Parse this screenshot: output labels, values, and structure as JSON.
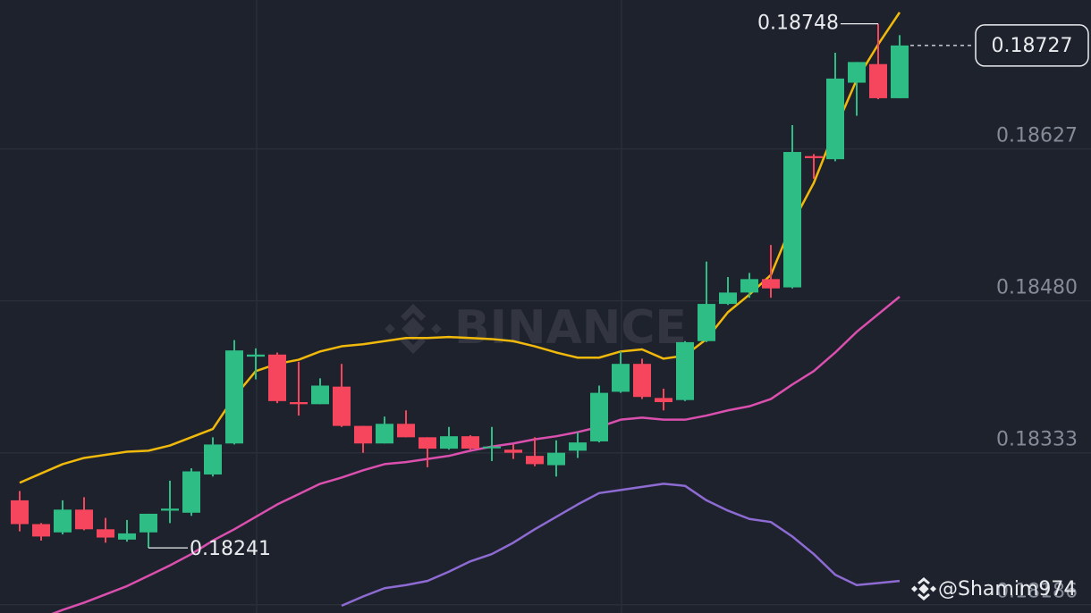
{
  "chart_data": {
    "type": "candlestick",
    "ylim": [
      0.18178,
      0.18771
    ],
    "yticks": [
      0.18186,
      0.18333,
      {
        "value": 0.1848,
        "label": "0.18480"
      },
      0.18627
    ],
    "grid": true,
    "up_color": "#2ebd85",
    "down_color": "#f6465d",
    "open": [
      0.18287,
      0.18264,
      0.18256,
      0.18278,
      0.18259,
      0.18249,
      0.18256,
      0.18277,
      0.18275,
      0.18312,
      0.18342,
      0.18426,
      0.18428,
      0.18382,
      0.1838,
      0.18397,
      0.18359,
      0.18342,
      0.18361,
      0.18348,
      0.18337,
      0.18349,
      0.18338,
      0.18336,
      0.1833,
      0.18321,
      0.18335,
      0.18344,
      0.18392,
      0.18419,
      0.18386,
      0.18384,
      0.18441,
      0.18477,
      0.18488,
      0.18501,
      0.18493,
      0.1862,
      0.18617,
      0.18691,
      0.18709,
      0.18676
    ],
    "high": [
      0.18296,
      0.18265,
      0.18287,
      0.1829,
      0.1827,
      0.18268,
      0.18274,
      0.18306,
      0.18318,
      0.18348,
      0.18442,
      0.18434,
      0.1843,
      0.18421,
      0.18405,
      0.18419,
      0.18359,
      0.18368,
      0.18374,
      0.18348,
      0.18358,
      0.1835,
      0.18358,
      0.18341,
      0.18348,
      0.18345,
      0.18353,
      0.18398,
      0.18431,
      0.18424,
      0.18395,
      0.18441,
      0.18518,
      0.18503,
      0.18507,
      0.18534,
      0.1865,
      0.18622,
      0.1872,
      0.18711,
      0.18748,
      0.18737
    ],
    "low": [
      0.18257,
      0.18248,
      0.18254,
      0.18258,
      0.18246,
      0.18247,
      0.18241,
      0.18265,
      0.18272,
      0.1831,
      0.18341,
      0.18404,
      0.18381,
      0.18369,
      0.1838,
      0.18358,
      0.18333,
      0.18342,
      0.18348,
      0.18319,
      0.18336,
      0.18336,
      0.18325,
      0.18327,
      0.1832,
      0.1831,
      0.18328,
      0.18343,
      0.18391,
      0.18385,
      0.18374,
      0.18383,
      0.1844,
      0.18476,
      0.18483,
      0.18483,
      0.18492,
      0.18598,
      0.18615,
      0.18659,
      0.18675,
      0.18676
    ],
    "close": [
      0.18264,
      0.18252,
      0.18278,
      0.18259,
      0.18251,
      0.18255,
      0.18274,
      0.18279,
      0.18315,
      0.18341,
      0.18432,
      0.18428,
      0.18383,
      0.1838,
      0.18398,
      0.18359,
      0.18342,
      0.18361,
      0.18348,
      0.18337,
      0.18349,
      0.18337,
      0.18339,
      0.18333,
      0.18322,
      0.18333,
      0.18343,
      0.18391,
      0.18419,
      0.18387,
      0.18382,
      0.1844,
      0.18477,
      0.18488,
      0.18501,
      0.18492,
      0.18624,
      0.18618,
      0.18695,
      0.18711,
      0.18676,
      0.18727
    ],
    "series": [
      {
        "color": "#f0b90b",
        "values": [
          0.18304,
          0.18313,
          0.18322,
          0.18328,
          0.18331,
          0.18334,
          0.18335,
          0.1834,
          0.18348,
          0.18356,
          0.18387,
          0.18412,
          0.18419,
          0.18423,
          0.18431,
          0.18436,
          0.18438,
          0.18441,
          0.18444,
          0.18444,
          0.18445,
          0.18444,
          0.18443,
          0.18441,
          0.18436,
          0.1843,
          0.18425,
          0.18425,
          0.18431,
          0.18433,
          0.18424,
          0.18427,
          0.18443,
          0.18469,
          0.18486,
          0.18505,
          0.18555,
          0.18594,
          0.18646,
          0.18694,
          0.18728,
          0.18759
        ]
      },
      {
        "color": "#db4fae",
        "values": [
          0.18166,
          0.18173,
          0.18181,
          0.18188,
          0.18196,
          0.18204,
          0.18214,
          0.18224,
          0.18235,
          0.18248,
          0.18259,
          0.18271,
          0.18283,
          0.18293,
          0.18303,
          0.18309,
          0.18316,
          0.18322,
          0.18324,
          0.18327,
          0.1833,
          0.18335,
          0.18339,
          0.18342,
          0.18346,
          0.18349,
          0.18353,
          0.18358,
          0.18365,
          0.18367,
          0.18365,
          0.18365,
          0.18369,
          0.18374,
          0.18378,
          0.18385,
          0.18399,
          0.18412,
          0.1843,
          0.1845,
          0.18467,
          0.18484
        ]
      },
      {
        "color": "#8d6bd3",
        "values": [
          null,
          null,
          null,
          null,
          null,
          null,
          null,
          null,
          null,
          null,
          null,
          null,
          null,
          null,
          null,
          0.18185,
          0.18194,
          0.18202,
          0.18205,
          0.18209,
          0.18218,
          0.18228,
          0.18235,
          0.18246,
          0.18259,
          0.18271,
          0.18283,
          0.18294,
          0.18297,
          0.183,
          0.18303,
          0.18301,
          0.18287,
          0.18277,
          0.18269,
          0.18266,
          0.18252,
          0.18235,
          0.18215,
          0.18205,
          0.18207,
          0.18209
        ]
      }
    ],
    "annotations": {
      "high": "0.18748",
      "low": "0.18241",
      "last_price": "0.18727"
    },
    "watermark": "BINANCE",
    "credit": "@Shamim974"
  }
}
